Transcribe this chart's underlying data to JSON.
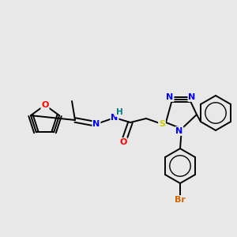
{
  "background_color": "#e8e8e8",
  "bond_color": "#000000",
  "atom_colors": {
    "O": "#ff0000",
    "N": "#0000ff",
    "S": "#cccc00",
    "Br": "#cc6600",
    "H": "#008080",
    "C": "#000000"
  },
  "figsize": [
    3.0,
    3.0
  ],
  "dpi": 100
}
